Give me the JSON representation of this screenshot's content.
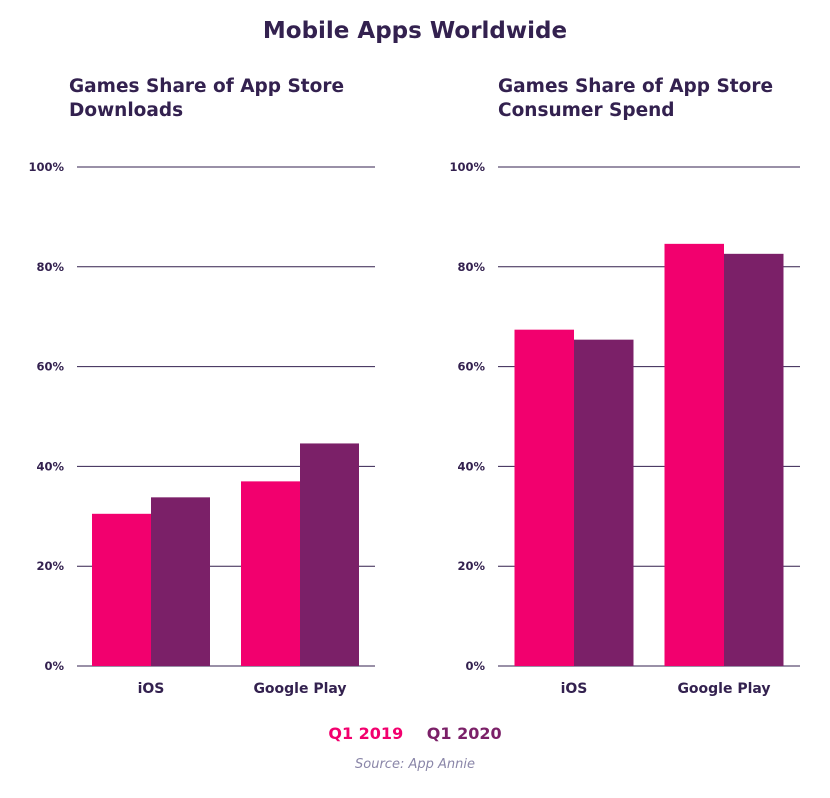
{
  "title": "Mobile Apps Worldwide",
  "colors": {
    "q1_2019": "#f2006e",
    "q1_2020": "#7b2068",
    "text": "#33214f",
    "gridline": "#33214f"
  },
  "legend": {
    "q1_2019": "Q1 2019",
    "q1_2020": "Q1 2020"
  },
  "source": "Source: App Annie",
  "chart_data": [
    {
      "type": "bar",
      "title": "Games Share of App Store Downloads",
      "categories": [
        "iOS",
        "Google Play"
      ],
      "series": [
        {
          "name": "Q1 2019",
          "values": [
            30.5,
            37
          ]
        },
        {
          "name": "Q1 2020",
          "values": [
            33.8,
            44.6
          ]
        }
      ],
      "ylim": [
        0,
        100
      ],
      "yticks": [
        "0%",
        "20%",
        "40%",
        "60%",
        "80%",
        "100%"
      ],
      "xlabel": "",
      "ylabel": "",
      "grid": true
    },
    {
      "type": "bar",
      "title": "Games Share of App Store Consumer Spend",
      "categories": [
        "iOS",
        "Google Play"
      ],
      "series": [
        {
          "name": "Q1 2019",
          "values": [
            67.4,
            84.6
          ]
        },
        {
          "name": "Q1 2020",
          "values": [
            65.4,
            82.6
          ]
        }
      ],
      "ylim": [
        0,
        100
      ],
      "yticks": [
        "0%",
        "20%",
        "40%",
        "60%",
        "80%",
        "100%"
      ],
      "xlabel": "",
      "ylabel": "",
      "grid": true
    }
  ]
}
